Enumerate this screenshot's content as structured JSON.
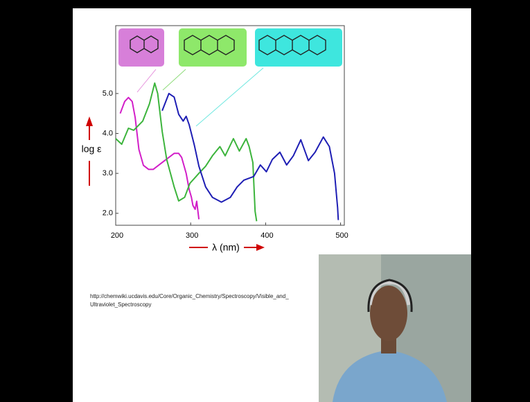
{
  "chart_data": {
    "type": "line",
    "xlabel": "λ (nm)",
    "ylabel": "log ε",
    "xlim": [
      200,
      505
    ],
    "ylim": [
      1.7,
      6.7
    ],
    "xticks": [
      200,
      300,
      400,
      500
    ],
    "yticks": [
      {
        "value": 2,
        "label": "2.0"
      },
      {
        "value": 3,
        "label": "3.0"
      },
      {
        "value": 4,
        "label": "4.0"
      },
      {
        "value": 5,
        "label": "5.0"
      }
    ],
    "series": [
      {
        "color": "#d21ec8",
        "x": [
          206,
          212,
          217,
          222,
          226,
          231,
          237,
          244,
          250,
          257,
          264,
          271,
          278,
          284,
          288,
          294,
          298,
          301,
          303,
          306,
          308,
          311
        ],
        "values": [
          4.5,
          4.8,
          4.9,
          4.8,
          4.4,
          3.6,
          3.2,
          3.1,
          3.1,
          3.2,
          3.3,
          3.4,
          3.5,
          3.5,
          3.4,
          3.0,
          2.6,
          2.4,
          2.2,
          2.1,
          2.3,
          1.85
        ]
      },
      {
        "color": "#3cb43c",
        "x": [
          200,
          208,
          217,
          224,
          236,
          245,
          252,
          256,
          262,
          268,
          278,
          284,
          292,
          299,
          311,
          320,
          329,
          339,
          346,
          357,
          365,
          374,
          378,
          383,
          386,
          388
        ],
        "values": [
          3.87,
          3.73,
          4.13,
          4.08,
          4.31,
          4.74,
          5.26,
          5.0,
          4.05,
          3.35,
          2.66,
          2.31,
          2.4,
          2.75,
          3.0,
          3.18,
          3.44,
          3.67,
          3.44,
          3.87,
          3.56,
          3.87,
          3.67,
          3.27,
          2.05,
          1.8
        ]
      },
      {
        "color": "#1e1eb4",
        "x": [
          262,
          271,
          278,
          284,
          290,
          294,
          298,
          305,
          311,
          320,
          329,
          341,
          353,
          362,
          371,
          384,
          393,
          401,
          409,
          419,
          428,
          437,
          447,
          457,
          466,
          477,
          485,
          492,
          496,
          497
        ],
        "values": [
          4.57,
          5.0,
          4.91,
          4.48,
          4.31,
          4.43,
          4.22,
          3.7,
          3.18,
          2.66,
          2.4,
          2.28,
          2.4,
          2.66,
          2.83,
          2.92,
          3.21,
          3.04,
          3.35,
          3.53,
          3.21,
          3.44,
          3.84,
          3.32,
          3.53,
          3.91,
          3.67,
          3.0,
          2.14,
          1.83
        ]
      }
    ],
    "annotations": [
      "http://chemwiki.ucdavis.edu/Core/Organic_Chemistry/Spectroscopy/Visible_and_",
      "Ultraviolet_Spectroscopy"
    ]
  }
}
